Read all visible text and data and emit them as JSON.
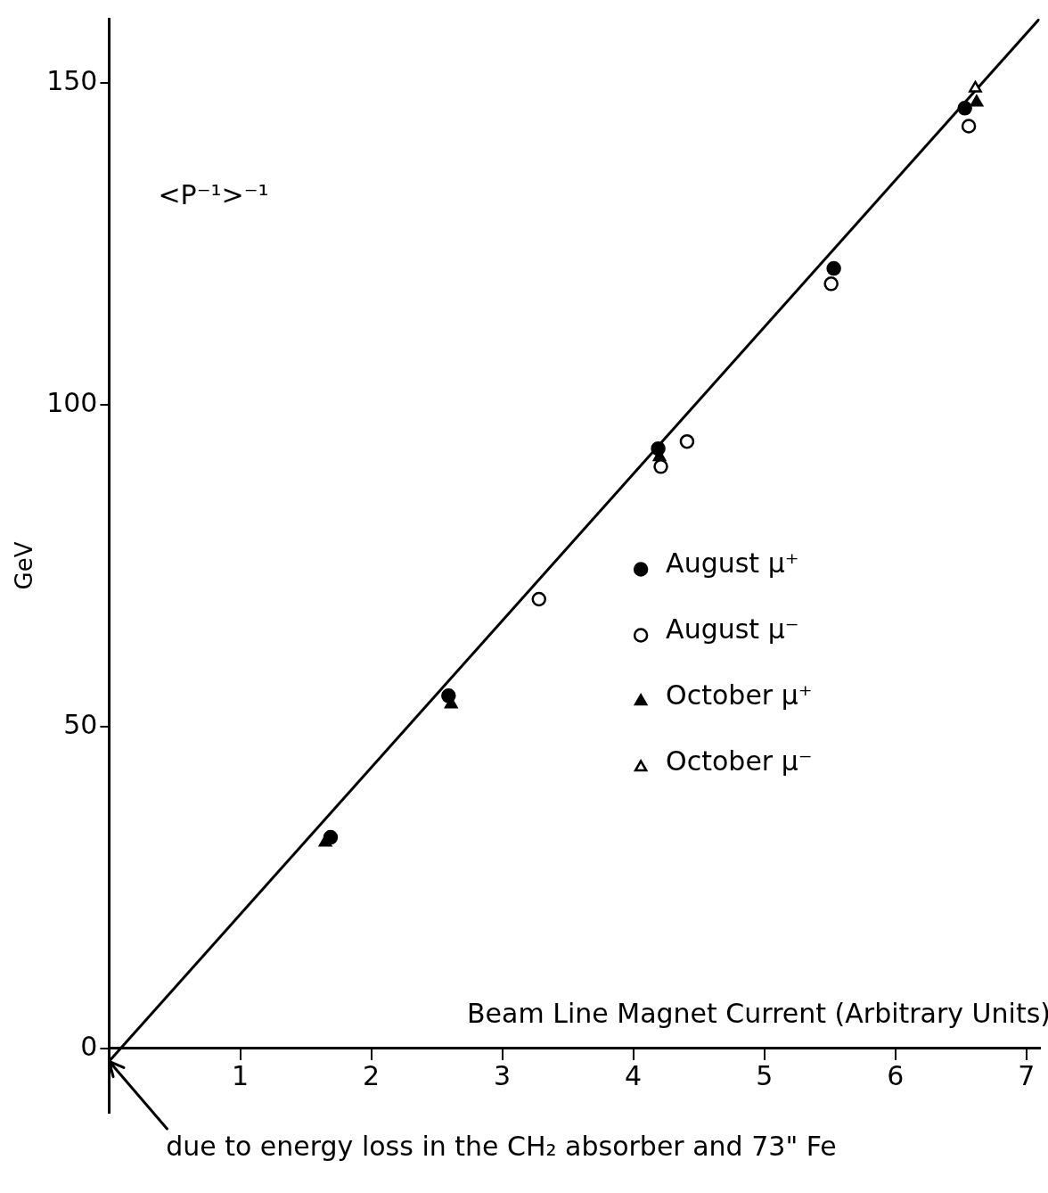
{
  "chart_data": {
    "type": "scatter",
    "xlabel": "Beam Line Magnet Current (Arbitrary Units)",
    "ylabel": "GeV",
    "annotations": [
      "<P⁻¹>⁻¹",
      {
        "text": "due to energy loss in the CH₂ absorber and 73\" Fe",
        "x": 0,
        "y": -2
      }
    ],
    "xlim": [
      0,
      7.1
    ],
    "ylim": [
      -10,
      160
    ],
    "xticks": [
      1,
      2,
      3,
      4,
      5,
      6,
      7
    ],
    "yticks": [
      0,
      50,
      100,
      150
    ],
    "grid": false,
    "legend": "right",
    "series": [
      {
        "name": "August μ⁺",
        "color": "#000000",
        "marker": "circle",
        "x": [
          1.69,
          2.59,
          4.19,
          5.53,
          6.53
        ],
        "values": [
          32.8,
          54.8,
          93.2,
          121.2,
          146.1
        ]
      },
      {
        "name": "August μ⁻",
        "color": "#ffffff",
        "marker": "circle",
        "x": [
          3.28,
          4.21,
          4.41,
          5.51,
          6.56
        ],
        "values": [
          69.8,
          90.4,
          94.3,
          118.8,
          143.3
        ]
      },
      {
        "name": "October μ⁺",
        "color": "#000000",
        "marker": "triangle",
        "x": [
          1.65,
          2.61,
          4.2,
          6.62
        ],
        "values": [
          32.0,
          53.5,
          91.9,
          147
        ]
      },
      {
        "name": "October μ⁻",
        "color": "#ffffff",
        "marker": "triangle",
        "x": [
          6.61
        ],
        "values": [
          149.2
        ]
      },
      {
        "type": "line",
        "color": "#000000",
        "marker": "none",
        "x": [
          0,
          7.1
        ],
        "values": [
          -2,
          160
        ]
      }
    ]
  }
}
